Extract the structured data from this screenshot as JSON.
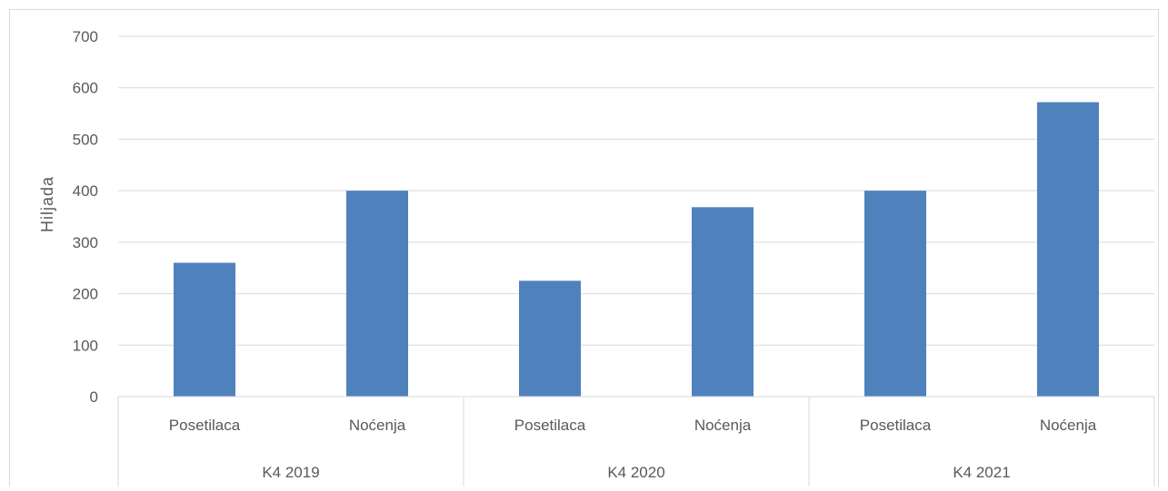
{
  "chart_data": {
    "type": "bar",
    "title": "",
    "xlabel": "",
    "ylabel": "Hiljada",
    "ylim": [
      0,
      700
    ],
    "yticks": [
      0,
      100,
      200,
      300,
      400,
      500,
      600,
      700
    ],
    "grid": true,
    "legend": "none",
    "bar_color": "#4F81BD",
    "groups": [
      {
        "label": "K4 2019",
        "categories": [
          "Posetilaca",
          "Noćenja"
        ],
        "values": [
          260,
          400
        ]
      },
      {
        "label": "K4 2020",
        "categories": [
          "Posetilaca",
          "Noćenja"
        ],
        "values": [
          225,
          368
        ]
      },
      {
        "label": "K4 2021",
        "categories": [
          "Posetilaca",
          "Noćenja"
        ],
        "values": [
          400,
          572
        ]
      }
    ]
  }
}
